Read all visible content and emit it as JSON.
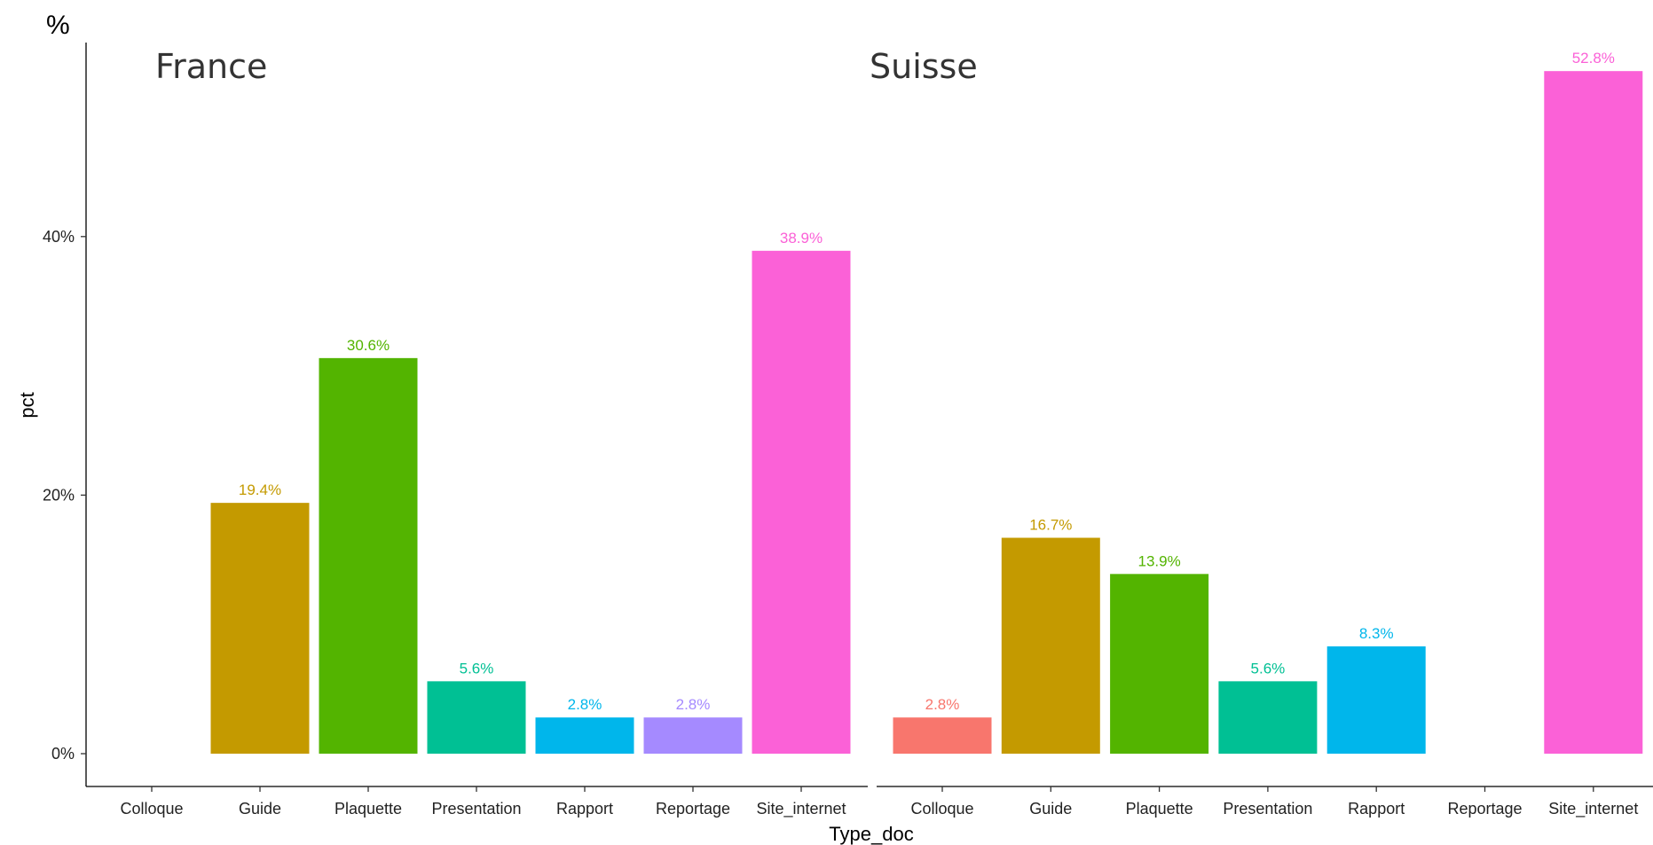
{
  "chart_data": {
    "type": "bar",
    "unit_label": "%",
    "xlabel": "Type_doc",
    "ylabel": "pct",
    "ylim": [
      0,
      0.56
    ],
    "y_ticks": [
      {
        "value": 0,
        "label": "0%"
      },
      {
        "value": 0.2,
        "label": "20%"
      },
      {
        "value": 0.4,
        "label": "40%"
      }
    ],
    "grid": false,
    "categories": [
      "Colloque",
      "Guide",
      "Plaquette",
      "Presentation",
      "Rapport",
      "Reportage",
      "Site_internet"
    ],
    "colors": {
      "Colloque": "#F8766D",
      "Guide": "#C49A00",
      "Plaquette": "#53B400",
      "Presentation": "#00C094",
      "Rapport": "#00B6EB",
      "Reportage": "#A58AFF",
      "Site_internet": "#FB61D7"
    },
    "panels": [
      {
        "title": "France",
        "values": [
          null,
          0.194,
          0.306,
          0.056,
          0.028,
          0.028,
          0.389
        ],
        "labels": [
          null,
          "19.4%",
          "30.6%",
          "5.6%",
          "2.8%",
          "2.8%",
          "38.9%"
        ]
      },
      {
        "title": "Suisse",
        "values": [
          0.028,
          0.167,
          0.139,
          0.056,
          0.083,
          null,
          0.528
        ],
        "labels": [
          "2.8%",
          "16.7%",
          "13.9%",
          "5.6%",
          "8.3%",
          null,
          "52.8%"
        ]
      }
    ]
  }
}
